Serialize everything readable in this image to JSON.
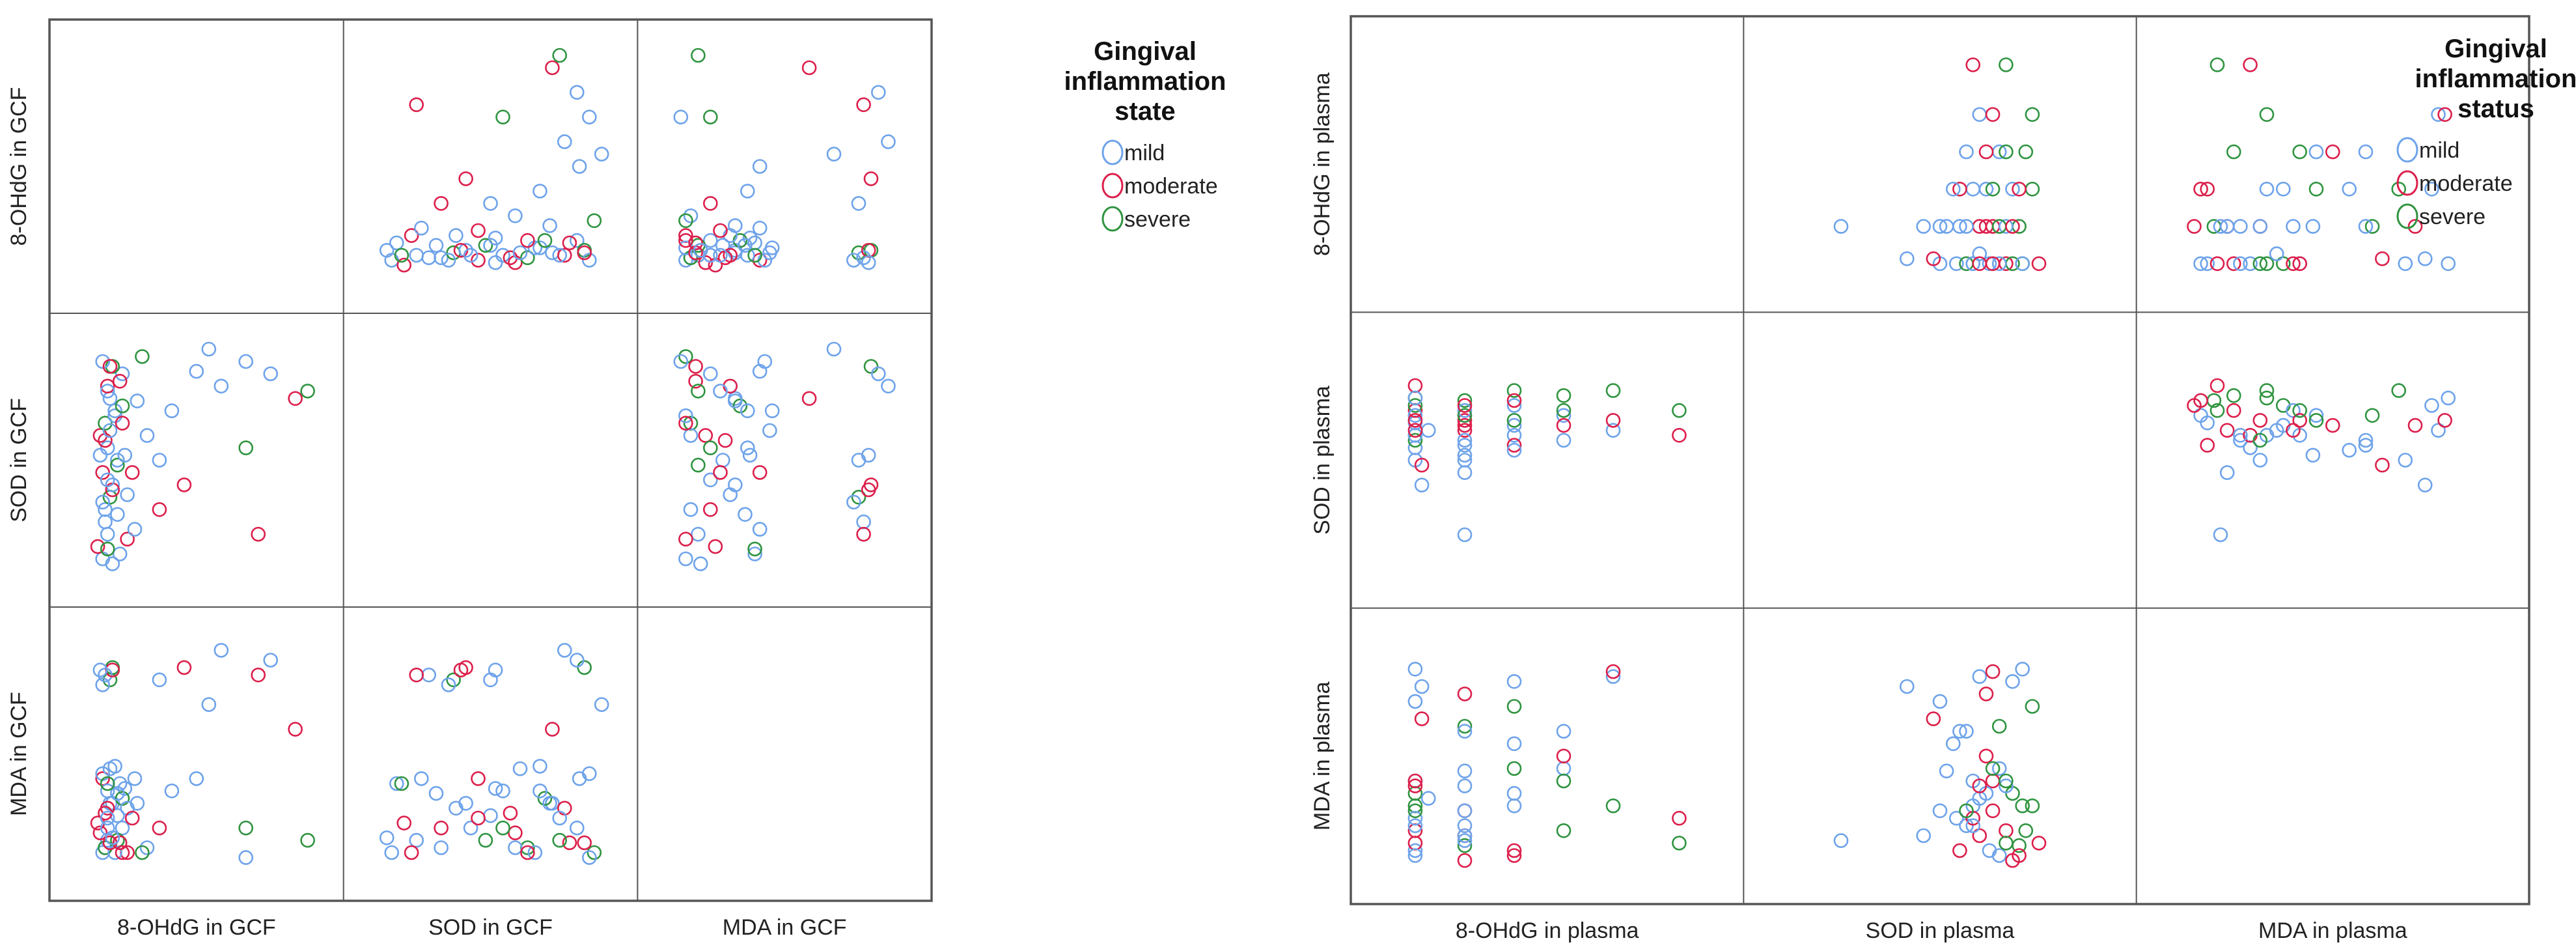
{
  "colors": {
    "mild": "#6ea3ea",
    "moderate": "#dc1f4b",
    "severe": "#2f9440"
  },
  "chart_data": [
    {
      "type": "scatter",
      "subtype": "scatter-matrix",
      "variables": [
        "8-OHdG in GCF",
        "SOD in GCF",
        "MDA in GCF"
      ],
      "axis_range": [
        0,
        100
      ],
      "legend": {
        "title_lines": [
          "Gingival",
          "inflammation",
          "state"
        ],
        "labels": [
          "mild",
          "moderate",
          "severe"
        ],
        "placement": "right"
      },
      "case_fields": [
        "group_index",
        "8-OHdG",
        "SOD",
        "MDA"
      ],
      "cases": [
        [
          0,
          12,
          10,
          10
        ],
        [
          0,
          14,
          20,
          15
        ],
        [
          1,
          10,
          15,
          22
        ],
        [
          0,
          13,
          30,
          12
        ],
        [
          2,
          15,
          35,
          80
        ],
        [
          0,
          16,
          40,
          30
        ],
        [
          1,
          12,
          45,
          40
        ],
        [
          0,
          18,
          50,
          25
        ],
        [
          0,
          14,
          55,
          35
        ],
        [
          1,
          11,
          60,
          18
        ],
        [
          2,
          13,
          65,
          12
        ],
        [
          0,
          17,
          70,
          45
        ],
        [
          0,
          15,
          75,
          30
        ],
        [
          1,
          14,
          80,
          28
        ],
        [
          0,
          20,
          85,
          20
        ],
        [
          2,
          16,
          88,
          85
        ],
        [
          0,
          19,
          12,
          38
        ],
        [
          1,
          22,
          18,
          10
        ],
        [
          0,
          13,
          25,
          82
        ],
        [
          0,
          12,
          33,
          78
        ],
        [
          1,
          16,
          38,
          84
        ],
        [
          0,
          14,
          42,
          20
        ],
        [
          2,
          18,
          48,
          15
        ],
        [
          0,
          21,
          52,
          36
        ],
        [
          1,
          13,
          58,
          26
        ],
        [
          0,
          15,
          62,
          44
        ],
        [
          0,
          17,
          68,
          10
        ],
        [
          2,
          20,
          72,
          32
        ],
        [
          0,
          14,
          78,
          24
        ],
        [
          1,
          19,
          82,
          14
        ],
        [
          0,
          25,
          22,
          40
        ],
        [
          0,
          30,
          60,
          12
        ],
        [
          1,
          35,
          30,
          20
        ],
        [
          0,
          40,
          70,
          35
        ],
        [
          2,
          28,
          92,
          10
        ],
        [
          1,
          90,
          75,
          60
        ],
        [
          0,
          70,
          90,
          8
        ],
        [
          0,
          80,
          85,
          88
        ],
        [
          1,
          75,
          20,
          82
        ],
        [
          0,
          60,
          80,
          92
        ],
        [
          2,
          95,
          78,
          15
        ],
        [
          0,
          55,
          95,
          70
        ],
        [
          0,
          50,
          86,
          40
        ],
        [
          1,
          45,
          40,
          85
        ],
        [
          0,
          35,
          50,
          80
        ],
        [
          2,
          70,
          55,
          20
        ],
        [
          0,
          12,
          90,
          42
        ],
        [
          1,
          15,
          88,
          14
        ],
        [
          0,
          18,
          28,
          34
        ],
        [
          0,
          22,
          36,
          28
        ],
        [
          1,
          24,
          45,
          24
        ],
        [
          2,
          14,
          14,
          38
        ],
        [
          0,
          16,
          8,
          16
        ],
        [
          1,
          20,
          65,
          10
        ],
        [
          0,
          26,
          74,
          30
        ],
        [
          0,
          11,
          52,
          84
        ]
      ]
    },
    {
      "type": "scatter",
      "subtype": "scatter-matrix",
      "variables": [
        "8-OHdG in plasma",
        "SOD in plasma",
        "MDA in plasma"
      ],
      "axis_range": [
        0,
        100
      ],
      "legend": {
        "title_lines": [
          "Gingival",
          "inflammation",
          "status"
        ],
        "labels": [
          "mild",
          "moderate",
          "severe"
        ],
        "placement": "right"
      },
      "case_fields": [
        "group_index",
        "8-OHdG",
        "SOD",
        "MDA"
      ],
      "cases": [
        [
          0,
          10,
          65,
          12
        ],
        [
          1,
          10,
          70,
          20
        ],
        [
          2,
          10,
          75,
          30
        ],
        [
          0,
          10,
          60,
          40
        ],
        [
          1,
          10,
          80,
          15
        ],
        [
          0,
          10,
          55,
          25
        ],
        [
          2,
          10,
          72,
          35
        ],
        [
          0,
          10,
          68,
          10
        ],
        [
          1,
          25,
          62,
          18
        ],
        [
          0,
          25,
          58,
          22
        ],
        [
          1,
          25,
          66,
          28
        ],
        [
          2,
          25,
          74,
          14
        ],
        [
          0,
          25,
          70,
          38
        ],
        [
          0,
          25,
          52,
          44
        ],
        [
          1,
          25,
          64,
          75
        ],
        [
          0,
          40,
          72,
          80
        ],
        [
          2,
          40,
          78,
          70
        ],
        [
          0,
          40,
          60,
          30
        ],
        [
          1,
          40,
          56,
          12
        ],
        [
          0,
          55,
          68,
          45
        ],
        [
          2,
          55,
          76,
          20
        ],
        [
          1,
          55,
          64,
          50
        ],
        [
          0,
          55,
          58,
          60
        ],
        [
          0,
          70,
          62,
          82
        ],
        [
          1,
          70,
          66,
          84
        ],
        [
          2,
          90,
          70,
          15
        ],
        [
          1,
          90,
          60,
          25
        ],
        [
          0,
          10,
          50,
          72
        ],
        [
          1,
          12,
          48,
          65
        ],
        [
          0,
          14,
          62,
          33
        ],
        [
          2,
          25,
          68,
          62
        ],
        [
          0,
          40,
          54,
          55
        ],
        [
          1,
          10,
          66,
          40
        ],
        [
          0,
          25,
          45,
          18
        ],
        [
          2,
          55,
          70,
          40
        ],
        [
          0,
          10,
          75,
          85
        ],
        [
          1,
          25,
          72,
          8
        ],
        [
          0,
          40,
          64,
          35
        ],
        [
          2,
          10,
          58,
          28
        ],
        [
          0,
          25,
          20,
          16
        ],
        [
          0,
          25,
          56,
          60
        ],
        [
          1,
          40,
          74,
          10
        ],
        [
          0,
          10,
          60,
          22
        ],
        [
          2,
          70,
          78,
          30
        ],
        [
          0,
          12,
          40,
          78
        ],
        [
          1,
          10,
          62,
          38
        ],
        [
          0,
          25,
          50,
          28
        ],
        [
          2,
          40,
          66,
          45
        ]
      ]
    }
  ]
}
